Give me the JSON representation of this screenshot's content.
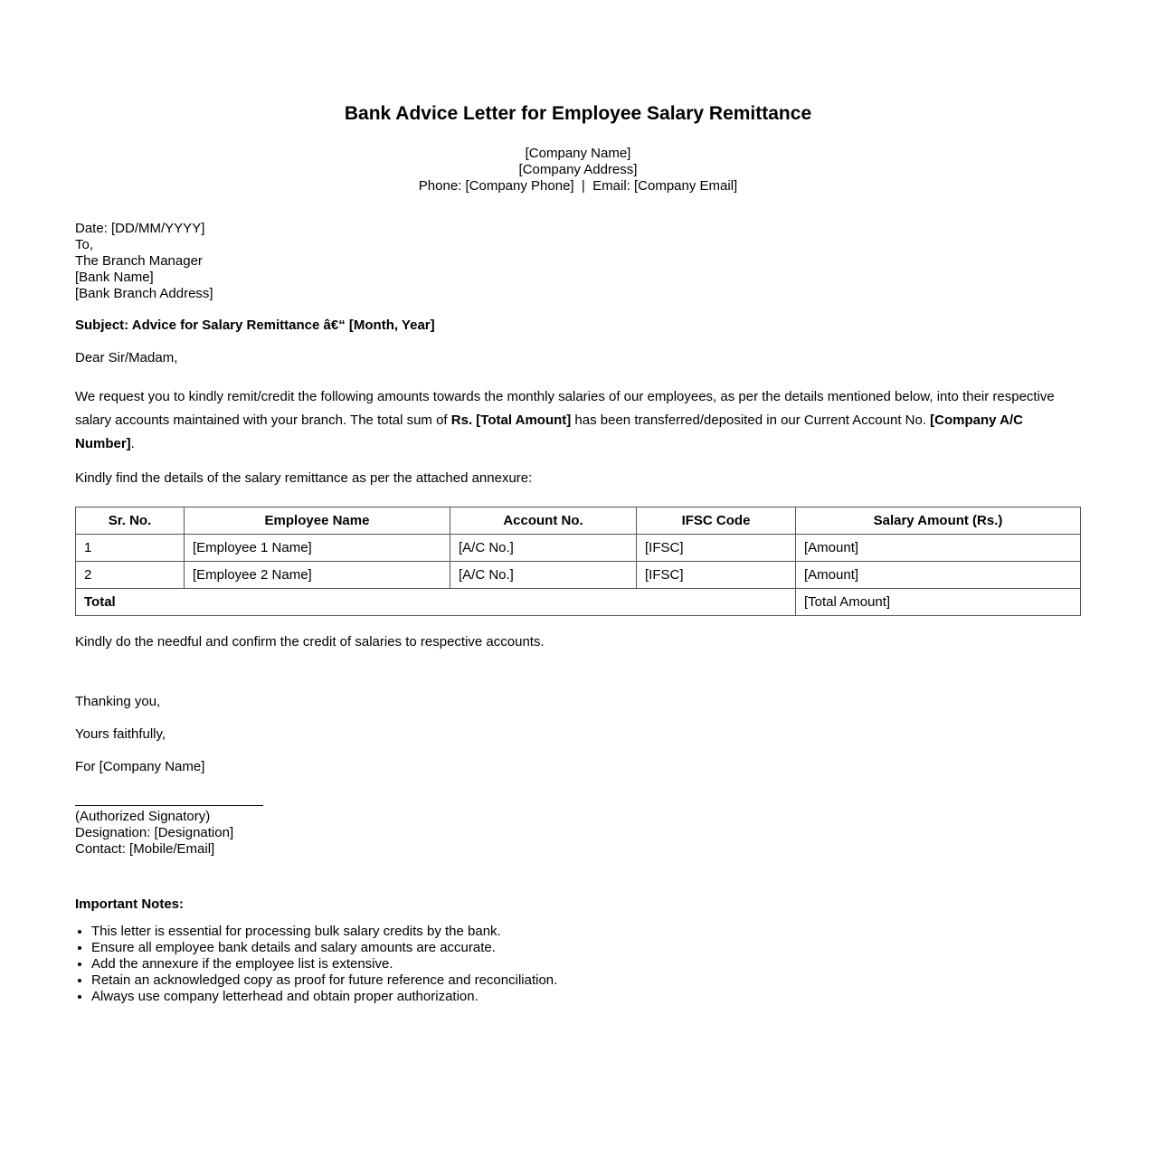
{
  "doc": {
    "title": "Bank Advice Letter for Employee Salary Remittance",
    "company": {
      "name": "[Company Name]",
      "address": "[Company Address]",
      "contact_line": "Phone: [Company Phone]  |  Email: [Company Email]"
    },
    "recipient": {
      "lines": [
        "Date: [DD/MM/YYYY]",
        "To,",
        "The Branch Manager",
        "[Bank Name]",
        "[Bank Branch Address]"
      ]
    },
    "subject": "Subject: Advice for Salary Remittance â€“ [Month, Year]",
    "salutation": "Dear Sir/Madam,",
    "body": {
      "part1": "We request you to kindly remit/credit the following amounts towards the monthly salaries of our employees, as per the details mentioned below, into their respective salary accounts maintained with your branch. The total sum of ",
      "bold1": "Rs. [Total Amount]",
      "part2": " has been transferred/deposited in our Current Account No. ",
      "bold2": "[Company A/C Number]",
      "part3": "."
    },
    "annexure_line": "Kindly find the details of the salary remittance as per the attached annexure:",
    "table": {
      "headers": [
        "Sr. No.",
        "Employee Name",
        "Account No.",
        "IFSC Code",
        "Salary Amount (Rs.)"
      ],
      "rows": [
        [
          "1",
          "[Employee 1 Name]",
          "[A/C No.]",
          "[IFSC]",
          "[Amount]"
        ],
        [
          "2",
          "[Employee 2 Name]",
          "[A/C No.]",
          "[IFSC]",
          "[Amount]"
        ]
      ],
      "total_label": "Total",
      "total_value": "[Total Amount]"
    },
    "confirmation_line": "Kindly do the needful and confirm the credit of salaries to respective accounts.",
    "closing": {
      "thanks": "Thanking you,",
      "faithfully": "Yours faithfully,",
      "for_company": "For [Company Name]"
    },
    "signature": {
      "lines": [
        "(Authorized Signatory)",
        "Designation: [Designation]",
        "Contact: [Mobile/Email]"
      ]
    },
    "notes": {
      "heading": "Important Notes:",
      "items": [
        "This letter is essential for processing bulk salary credits by the bank.",
        "Ensure all employee bank details and salary amounts are accurate.",
        "Add the annexure if the employee list is extensive.",
        "Retain an acknowledged copy as proof for future reference and reconciliation.",
        "Always use company letterhead and obtain proper authorization."
      ]
    }
  }
}
